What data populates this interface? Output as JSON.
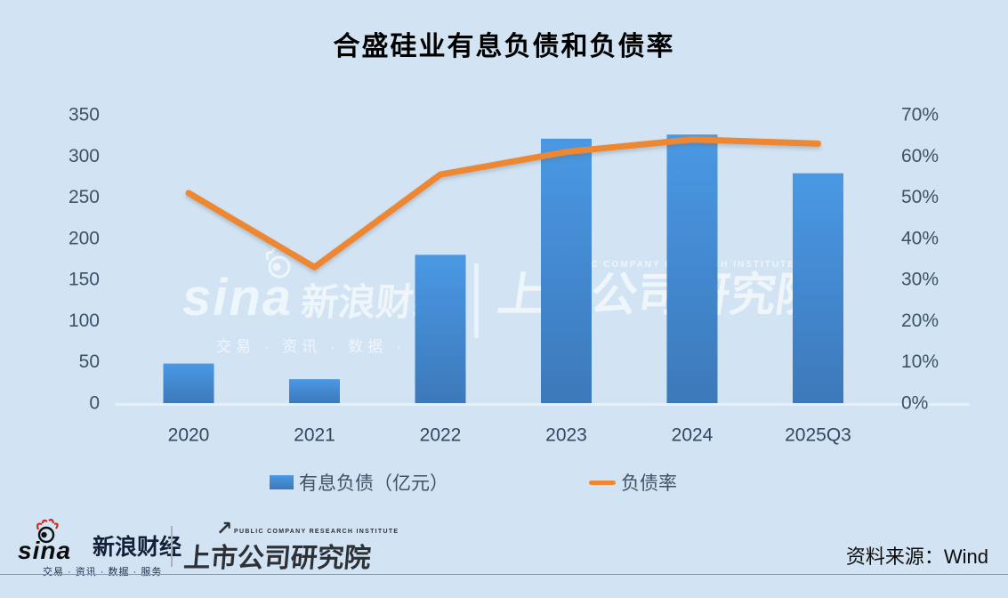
{
  "title": "合盛硅业有息负债和负债率",
  "chart_data": {
    "type": "bar",
    "subtype": "bar+line combo",
    "categories": [
      "2020",
      "2021",
      "2022",
      "2023",
      "2024",
      "2025Q3"
    ],
    "series": [
      {
        "name": "有息负债（亿元）",
        "type": "bar",
        "axis": "left",
        "values": [
          48,
          29,
          180,
          321,
          326,
          279
        ],
        "color_top": "#4a98e4",
        "color_bottom": "#3c79ba"
      },
      {
        "name": "负债率",
        "type": "line",
        "axis": "right",
        "values": [
          51,
          33,
          55.5,
          61,
          64,
          63
        ],
        "unit": "%",
        "color": "#ed8733"
      }
    ],
    "title": "合盛硅业有息负债和负债率",
    "xlabel": "",
    "ylabel": "",
    "left_axis": {
      "min": 0,
      "max": 350,
      "step": 50,
      "ticks": [
        "350",
        "300",
        "250",
        "200",
        "150",
        "100",
        "50",
        "0"
      ]
    },
    "right_axis": {
      "min": 0,
      "max": 70,
      "step": 10,
      "ticks": [
        "70%",
        "60%",
        "50%",
        "40%",
        "30%",
        "20%",
        "10%",
        "0%"
      ]
    },
    "grid": false,
    "legend_position": "bottom"
  },
  "watermark": {
    "sina_text": "sina",
    "brand": "新浪财经",
    "tagline": "交易 · 资讯 · 数据 · 服务",
    "institute_en": "PUBLIC COMPANY RESEARCH INSTITUTE",
    "institute": "上市公司研究院"
  },
  "footer": {
    "sina_text": "sina",
    "brand": "新浪财经",
    "tagline": "交易 · 资讯 · 数据 · 服务",
    "institute_en": "PUBLIC COMPANY RESEARCH INSTITUTE",
    "institute": "上市公司研究院",
    "arrow": "↗",
    "source": "资料来源：Wind"
  },
  "colors": {
    "background": "#d2e4f3",
    "bar_top": "#4a98e4",
    "bar_bottom": "#3c79ba",
    "line": "#ed8733",
    "axis_text": "#3d5267",
    "x_label_text": "#33485e",
    "baseline": "#e7eff7",
    "title_text": "#000000"
  }
}
